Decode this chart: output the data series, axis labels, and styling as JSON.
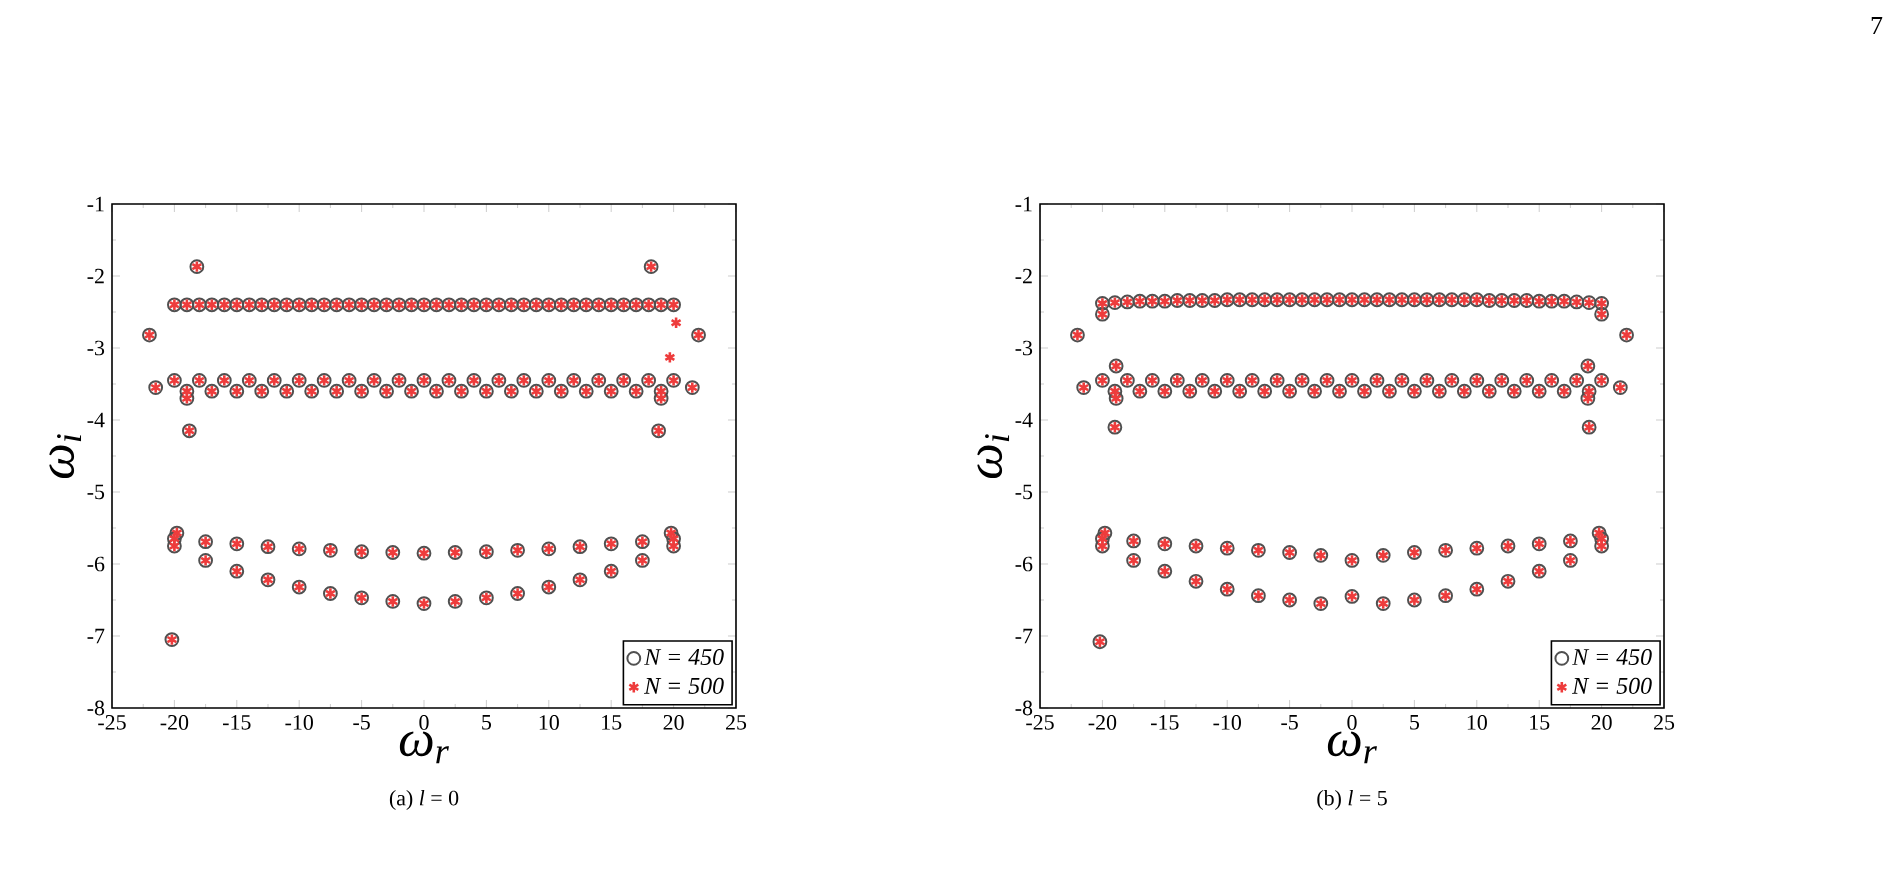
{
  "chart_data": [
    {
      "type": "scatter",
      "xlabel": "ω$_{r}$",
      "ylabel": "ω$_{i}$",
      "annotations": [
        "(a) *l* = 0"
      ],
      "xlim": [
        -25,
        25
      ],
      "ylim": [
        -8,
        -1
      ],
      "xticks": [
        -25,
        -20,
        -15,
        -10,
        -5,
        0,
        5,
        10,
        15,
        20,
        25
      ],
      "yticks": [
        -8,
        -7,
        -6,
        -5,
        -4,
        -3,
        -2,
        -1
      ],
      "legend": "bottom right",
      "series": [
        {
          "name": "N = 450",
          "color": "#505050",
          "marker": "circle",
          "x": [
            -20,
            -19,
            -18,
            -17,
            -16,
            -15,
            -14,
            -13,
            -12,
            -11,
            -10,
            -9,
            -8,
            -7,
            -6,
            -5,
            -4,
            -3,
            -2,
            -1,
            0,
            1,
            2,
            3,
            4,
            5,
            6,
            7,
            8,
            9,
            10,
            11,
            12,
            13,
            14,
            15,
            16,
            17,
            18,
            19,
            20,
            -20,
            -18,
            -16,
            -14,
            -12,
            -10,
            -8,
            -6,
            -4,
            -2,
            0,
            2,
            4,
            6,
            8,
            10,
            12,
            14,
            16,
            18,
            20,
            -19,
            -17,
            -15,
            -13,
            -11,
            -9,
            -7,
            -5,
            -3,
            -1,
            1,
            3,
            5,
            7,
            9,
            11,
            13,
            15,
            17,
            19,
            -20,
            -17.5,
            -15,
            -12.5,
            -10,
            -7.5,
            -5,
            -2.5,
            0,
            2.5,
            5,
            7.5,
            10,
            12.5,
            15,
            17.5,
            20,
            -20,
            -17.5,
            -15,
            -12.5,
            -10,
            -7.5,
            -5,
            -2.5,
            0,
            2.5,
            5,
            7.5,
            10,
            12.5,
            15,
            17.5,
            20,
            -21.5,
            21.5,
            -19,
            19,
            -22,
            22,
            -18.2,
            18.2,
            -18.8,
            18.8,
            -20.2,
            -19.8,
            19.8
          ],
          "values": [
            -2.4,
            -2.4,
            -2.4,
            -2.4,
            -2.4,
            -2.4,
            -2.4,
            -2.4,
            -2.4,
            -2.4,
            -2.4,
            -2.4,
            -2.4,
            -2.4,
            -2.4,
            -2.4,
            -2.4,
            -2.4,
            -2.4,
            -2.4,
            -2.4,
            -2.4,
            -2.4,
            -2.4,
            -2.4,
            -2.4,
            -2.4,
            -2.4,
            -2.4,
            -2.4,
            -2.4,
            -2.4,
            -2.4,
            -2.4,
            -2.4,
            -2.4,
            -2.4,
            -2.4,
            -2.4,
            -2.4,
            -2.4,
            -3.45,
            -3.45,
            -3.45,
            -3.45,
            -3.45,
            -3.45,
            -3.45,
            -3.45,
            -3.45,
            -3.45,
            -3.45,
            -3.45,
            -3.45,
            -3.45,
            -3.45,
            -3.45,
            -3.45,
            -3.45,
            -3.45,
            -3.45,
            -3.45,
            -3.6,
            -3.6,
            -3.6,
            -3.6,
            -3.6,
            -3.6,
            -3.6,
            -3.6,
            -3.6,
            -3.6,
            -3.6,
            -3.6,
            -3.6,
            -3.6,
            -3.6,
            -3.6,
            -3.6,
            -3.6,
            -3.6,
            -3.6,
            -5.65,
            -5.69,
            -5.72,
            -5.76,
            -5.79,
            -5.81,
            -5.83,
            -5.84,
            -5.85,
            -5.84,
            -5.83,
            -5.81,
            -5.79,
            -5.76,
            -5.72,
            -5.69,
            -5.65,
            -5.75,
            -5.95,
            -6.1,
            -6.22,
            -6.32,
            -6.41,
            -6.47,
            -6.52,
            -6.55,
            -6.52,
            -6.47,
            -6.41,
            -6.32,
            -6.22,
            -6.1,
            -5.95,
            -5.75,
            -3.55,
            -3.55,
            -3.7,
            -3.7,
            -2.82,
            -2.82,
            -1.87,
            -1.87,
            -4.15,
            -4.15,
            -7.05,
            -5.57,
            -5.57
          ]
        },
        {
          "name": "N = 500",
          "color": "#ee3c3c",
          "marker": "cross",
          "x": [
            -20,
            -19,
            -18,
            -17,
            -16,
            -15,
            -14,
            -13,
            -12,
            -11,
            -10,
            -9,
            -8,
            -7,
            -6,
            -5,
            -4,
            -3,
            -2,
            -1,
            0,
            1,
            2,
            3,
            4,
            5,
            6,
            7,
            8,
            9,
            10,
            11,
            12,
            13,
            14,
            15,
            16,
            17,
            18,
            19,
            20,
            -20,
            -18,
            -16,
            -14,
            -12,
            -10,
            -8,
            -6,
            -4,
            -2,
            0,
            2,
            4,
            6,
            8,
            10,
            12,
            14,
            16,
            18,
            20,
            -19,
            -17,
            -15,
            -13,
            -11,
            -9,
            -7,
            -5,
            -3,
            -1,
            1,
            3,
            5,
            7,
            9,
            11,
            13,
            15,
            17,
            19,
            -20,
            -17.5,
            -15,
            -12.5,
            -10,
            -7.5,
            -5,
            -2.5,
            0,
            2.5,
            5,
            7.5,
            10,
            12.5,
            15,
            17.5,
            20,
            -20,
            -17.5,
            -15,
            -12.5,
            -10,
            -7.5,
            -5,
            -2.5,
            0,
            2.5,
            5,
            7.5,
            10,
            12.5,
            15,
            17.5,
            20,
            -21.5,
            21.5,
            -19,
            19,
            -22,
            22,
            -18.2,
            18.2,
            -18.8,
            18.8,
            -20.2,
            -19.8,
            19.8,
            19.7,
            20.2
          ],
          "values": [
            -2.4,
            -2.4,
            -2.4,
            -2.4,
            -2.4,
            -2.4,
            -2.4,
            -2.4,
            -2.4,
            -2.4,
            -2.4,
            -2.4,
            -2.4,
            -2.4,
            -2.4,
            -2.4,
            -2.4,
            -2.4,
            -2.4,
            -2.4,
            -2.4,
            -2.4,
            -2.4,
            -2.4,
            -2.4,
            -2.4,
            -2.4,
            -2.4,
            -2.4,
            -2.4,
            -2.4,
            -2.4,
            -2.4,
            -2.4,
            -2.4,
            -2.4,
            -2.4,
            -2.4,
            -2.4,
            -2.4,
            -2.4,
            -3.45,
            -3.45,
            -3.45,
            -3.45,
            -3.45,
            -3.45,
            -3.45,
            -3.45,
            -3.45,
            -3.45,
            -3.45,
            -3.45,
            -3.45,
            -3.45,
            -3.45,
            -3.45,
            -3.45,
            -3.45,
            -3.45,
            -3.45,
            -3.45,
            -3.6,
            -3.6,
            -3.6,
            -3.6,
            -3.6,
            -3.6,
            -3.6,
            -3.6,
            -3.6,
            -3.6,
            -3.6,
            -3.6,
            -3.6,
            -3.6,
            -3.6,
            -3.6,
            -3.6,
            -3.6,
            -3.6,
            -3.6,
            -5.65,
            -5.69,
            -5.72,
            -5.76,
            -5.79,
            -5.81,
            -5.83,
            -5.84,
            -5.85,
            -5.84,
            -5.83,
            -5.81,
            -5.79,
            -5.76,
            -5.72,
            -5.69,
            -5.65,
            -5.75,
            -5.95,
            -6.1,
            -6.22,
            -6.32,
            -6.41,
            -6.47,
            -6.52,
            -6.55,
            -6.52,
            -6.47,
            -6.41,
            -6.32,
            -6.22,
            -6.1,
            -5.95,
            -5.75,
            -3.55,
            -3.55,
            -3.7,
            -3.7,
            -2.82,
            -2.82,
            -1.87,
            -1.87,
            -4.15,
            -4.15,
            -7.05,
            -5.57,
            -5.57,
            -3.13,
            -2.65
          ]
        }
      ]
    },
    {
      "type": "scatter",
      "xlabel": "ω$_{r}$",
      "ylabel": "ω$_{i}$",
      "annotations": [
        "(b) *l* = 5",
        "7"
      ],
      "xlim": [
        -25,
        25
      ],
      "ylim": [
        -8,
        -1
      ],
      "xticks": [
        -25,
        -20,
        -15,
        -10,
        -5,
        0,
        5,
        10,
        15,
        20,
        25
      ],
      "yticks": [
        -8,
        -7,
        -6,
        -5,
        -4,
        -3,
        -2,
        -1
      ],
      "legend": "bottom right",
      "series": [
        {
          "name": "N = 450",
          "color": "#505050",
          "marker": "circle",
          "x": [
            -20,
            -19,
            -18,
            -17,
            -16,
            -15,
            -14,
            -13,
            -12,
            -11,
            -10,
            -9,
            -8,
            -7,
            -6,
            -5,
            -4,
            -3,
            -2,
            -1,
            0,
            1,
            2,
            3,
            4,
            5,
            6,
            7,
            8,
            9,
            10,
            11,
            12,
            13,
            14,
            15,
            16,
            17,
            18,
            19,
            20,
            -20,
            -18,
            -16,
            -14,
            -12,
            -10,
            -8,
            -6,
            -4,
            -2,
            0,
            2,
            4,
            6,
            8,
            10,
            12,
            14,
            16,
            18,
            20,
            -19,
            -17,
            -15,
            -13,
            -11,
            -9,
            -7,
            -5,
            -3,
            -1,
            1,
            3,
            5,
            7,
            9,
            11,
            13,
            15,
            17,
            19,
            -20,
            -17.5,
            -15,
            -12.5,
            -10,
            -7.5,
            -5,
            -2.5,
            0,
            2.5,
            5,
            7.5,
            10,
            12.5,
            15,
            17.5,
            20,
            -20,
            -17.5,
            -15,
            -12.5,
            -10,
            -7.5,
            -5,
            -2.5,
            0,
            2.5,
            5,
            7.5,
            10,
            12.5,
            15,
            17.5,
            20,
            -22,
            22,
            -20,
            20,
            -18.9,
            18.9,
            -18.9,
            18.9,
            -19,
            19,
            -20.2,
            -19.8,
            19.8,
            -21.5,
            21.5
          ],
          "values": [
            -2.38,
            -2.37,
            -2.36,
            -2.35,
            -2.35,
            -2.35,
            -2.34,
            -2.34,
            -2.34,
            -2.34,
            -2.33,
            -2.33,
            -2.33,
            -2.33,
            -2.33,
            -2.33,
            -2.33,
            -2.33,
            -2.33,
            -2.33,
            -2.33,
            -2.33,
            -2.33,
            -2.33,
            -2.33,
            -2.33,
            -2.33,
            -2.33,
            -2.33,
            -2.33,
            -2.33,
            -2.34,
            -2.34,
            -2.34,
            -2.34,
            -2.35,
            -2.35,
            -2.35,
            -2.36,
            -2.37,
            -2.38,
            -3.45,
            -3.45,
            -3.45,
            -3.45,
            -3.45,
            -3.45,
            -3.45,
            -3.45,
            -3.45,
            -3.45,
            -3.45,
            -3.45,
            -3.45,
            -3.45,
            -3.45,
            -3.45,
            -3.45,
            -3.45,
            -3.45,
            -3.45,
            -3.45,
            -3.6,
            -3.6,
            -3.6,
            -3.6,
            -3.6,
            -3.6,
            -3.6,
            -3.6,
            -3.6,
            -3.6,
            -3.6,
            -3.6,
            -3.6,
            -3.6,
            -3.6,
            -3.6,
            -3.6,
            -3.6,
            -3.6,
            -3.6,
            -5.65,
            -5.68,
            -5.72,
            -5.75,
            -5.78,
            -5.81,
            -5.84,
            -5.88,
            -5.95,
            -5.88,
            -5.84,
            -5.81,
            -5.78,
            -5.75,
            -5.72,
            -5.68,
            -5.65,
            -5.75,
            -5.95,
            -6.1,
            -6.24,
            -6.35,
            -6.44,
            -6.5,
            -6.55,
            -6.45,
            -6.55,
            -6.5,
            -6.44,
            -6.35,
            -6.24,
            -6.1,
            -5.95,
            -5.75,
            -2.82,
            -2.82,
            -2.53,
            -2.53,
            -3.25,
            -3.25,
            -3.7,
            -3.7,
            -4.1,
            -4.1,
            -7.08,
            -5.57,
            -5.57,
            -3.55,
            -3.55
          ]
        },
        {
          "name": "N = 500",
          "color": "#ee3c3c",
          "marker": "cross",
          "x": [
            -20,
            -19,
            -18,
            -17,
            -16,
            -15,
            -14,
            -13,
            -12,
            -11,
            -10,
            -9,
            -8,
            -7,
            -6,
            -5,
            -4,
            -3,
            -2,
            -1,
            0,
            1,
            2,
            3,
            4,
            5,
            6,
            7,
            8,
            9,
            10,
            11,
            12,
            13,
            14,
            15,
            16,
            17,
            18,
            19,
            20,
            -20,
            -18,
            -16,
            -14,
            -12,
            -10,
            -8,
            -6,
            -4,
            -2,
            0,
            2,
            4,
            6,
            8,
            10,
            12,
            14,
            16,
            18,
            20,
            -19,
            -17,
            -15,
            -13,
            -11,
            -9,
            -7,
            -5,
            -3,
            -1,
            1,
            3,
            5,
            7,
            9,
            11,
            13,
            15,
            17,
            19,
            -20,
            -17.5,
            -15,
            -12.5,
            -10,
            -7.5,
            -5,
            -2.5,
            0,
            2.5,
            5,
            7.5,
            10,
            12.5,
            15,
            17.5,
            20,
            -20,
            -17.5,
            -15,
            -12.5,
            -10,
            -7.5,
            -5,
            -2.5,
            0,
            2.5,
            5,
            7.5,
            10,
            12.5,
            15,
            17.5,
            20,
            -22,
            22,
            -20,
            20,
            -18.9,
            18.9,
            -18.9,
            18.9,
            -19,
            19,
            -20.2,
            -19.8,
            19.8,
            -21.5,
            21.5
          ],
          "values": [
            -2.38,
            -2.37,
            -2.36,
            -2.35,
            -2.35,
            -2.35,
            -2.34,
            -2.34,
            -2.34,
            -2.34,
            -2.33,
            -2.33,
            -2.33,
            -2.33,
            -2.33,
            -2.33,
            -2.33,
            -2.33,
            -2.33,
            -2.33,
            -2.33,
            -2.33,
            -2.33,
            -2.33,
            -2.33,
            -2.33,
            -2.33,
            -2.33,
            -2.33,
            -2.33,
            -2.33,
            -2.34,
            -2.34,
            -2.34,
            -2.34,
            -2.35,
            -2.35,
            -2.35,
            -2.36,
            -2.37,
            -2.38,
            -3.45,
            -3.45,
            -3.45,
            -3.45,
            -3.45,
            -3.45,
            -3.45,
            -3.45,
            -3.45,
            -3.45,
            -3.45,
            -3.45,
            -3.45,
            -3.45,
            -3.45,
            -3.45,
            -3.45,
            -3.45,
            -3.45,
            -3.45,
            -3.45,
            -3.6,
            -3.6,
            -3.6,
            -3.6,
            -3.6,
            -3.6,
            -3.6,
            -3.6,
            -3.6,
            -3.6,
            -3.6,
            -3.6,
            -3.6,
            -3.6,
            -3.6,
            -3.6,
            -3.6,
            -3.6,
            -3.6,
            -3.6,
            -5.65,
            -5.68,
            -5.72,
            -5.75,
            -5.78,
            -5.81,
            -5.84,
            -5.88,
            -5.95,
            -5.88,
            -5.84,
            -5.81,
            -5.78,
            -5.75,
            -5.72,
            -5.68,
            -5.65,
            -5.75,
            -5.95,
            -6.1,
            -6.24,
            -6.35,
            -6.44,
            -6.5,
            -6.55,
            -6.45,
            -6.55,
            -6.5,
            -6.44,
            -6.35,
            -6.24,
            -6.1,
            -5.95,
            -5.75,
            -2.82,
            -2.82,
            -2.53,
            -2.53,
            -3.25,
            -3.25,
            -3.7,
            -3.7,
            -4.1,
            -4.1,
            -7.08,
            -5.57,
            -5.57,
            -3.55,
            -3.55
          ]
        }
      ]
    }
  ]
}
